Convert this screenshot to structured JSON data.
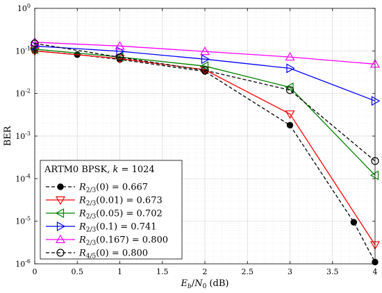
{
  "chart_data": {
    "type": "line",
    "xlabel": "Eb/N0 (dB)",
    "ylabel": "BER",
    "xlim": [
      0,
      4
    ],
    "ylim": [
      1e-06,
      1
    ],
    "yscale": "log",
    "grid": true,
    "legend_position": "bottom-left",
    "legend_title": "ARTM0 BPSK, k = 1024",
    "x_ticks": [
      "0",
      "0.5",
      "1",
      "1.5",
      "2",
      "2.5",
      "3",
      "3.5",
      "4"
    ],
    "y_ticks": [
      {
        "base": "10",
        "exp": "0"
      },
      {
        "base": "10",
        "exp": "-1"
      },
      {
        "base": "10",
        "exp": "-2"
      },
      {
        "base": "10",
        "exp": "-3"
      },
      {
        "base": "10",
        "exp": "-4"
      },
      {
        "base": "10",
        "exp": "-5"
      },
      {
        "base": "10",
        "exp": "-6"
      }
    ],
    "series": [
      {
        "name": "R2/3(0) = 0.667",
        "sub": "2/3",
        "arg": "(0) = 0.667",
        "color": "#000000",
        "dash": true,
        "marker": "dot",
        "x": [
          0,
          0.5,
          1,
          2,
          3,
          3.75,
          4
        ],
        "y": [
          0.1,
          0.082,
          0.063,
          0.033,
          0.0018,
          9.5e-06,
          1.1e-06
        ]
      },
      {
        "name": "R2/3(0.01) = 0.673",
        "sub": "2/3",
        "arg": "(0.01) = 0.673",
        "color": "#ff0000",
        "dash": false,
        "marker": "triangle-down",
        "x": [
          0,
          1,
          2,
          3,
          4
        ],
        "y": [
          0.1,
          0.066,
          0.036,
          0.0033,
          2.8e-06
        ]
      },
      {
        "name": "R2/3(0.05) = 0.702",
        "sub": "2/3",
        "arg": "(0.05) = 0.702",
        "color": "#008000",
        "dash": false,
        "marker": "triangle-left",
        "x": [
          0,
          1,
          2,
          3,
          4
        ],
        "y": [
          0.11,
          0.072,
          0.044,
          0.014,
          0.00012
        ]
      },
      {
        "name": "R2/3(0.1) = 0.741",
        "sub": "2/3",
        "arg": "(0.1) = 0.741",
        "color": "#0000ff",
        "dash": false,
        "marker": "triangle-right",
        "x": [
          0,
          1,
          2,
          3,
          4
        ],
        "y": [
          0.13,
          0.098,
          0.064,
          0.039,
          0.0067
        ]
      },
      {
        "name": "R2/3(0.167) = 0.800",
        "sub": "2/3",
        "arg": "(0.167) = 0.800",
        "color": "#ff00ff",
        "dash": false,
        "marker": "triangle-up",
        "x": [
          0,
          1,
          2,
          3,
          4
        ],
        "y": [
          0.16,
          0.13,
          0.097,
          0.072,
          0.049
        ]
      },
      {
        "name": "R4/5(0) = 0.800",
        "sub": "4/5",
        "arg": "(0) = 0.800",
        "color": "#000000",
        "dash": true,
        "marker": "circle",
        "x": [
          0,
          1,
          2,
          3,
          4
        ],
        "y": [
          0.15,
          0.071,
          0.035,
          0.012,
          0.00026
        ]
      }
    ]
  }
}
